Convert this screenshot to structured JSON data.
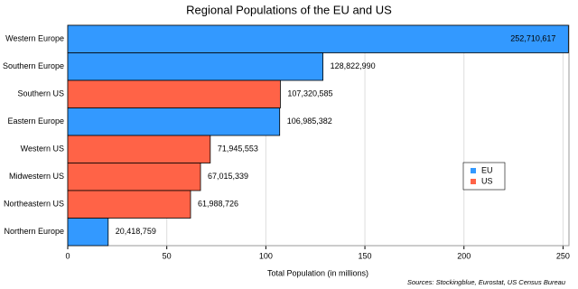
{
  "chart_data": {
    "type": "hbar",
    "title": "Regional Populations of the EU and US",
    "x_label": "Total Population (in millions)",
    "source": "Sources: Stockingblue, Eurostat, US Census Bureau",
    "categories": [
      "Western Europe",
      "Southern Europe",
      "Southern US",
      "Eastern Europe",
      "Western US",
      "Midwestern US",
      "Northeastern US",
      "Northern Europe"
    ],
    "series": [
      {
        "name": "EU",
        "color": "#3399ff",
        "values": [
          252.710617,
          128.82299,
          null,
          106.985382,
          null,
          null,
          null,
          20.418759
        ],
        "value_labels": [
          "252,710,617",
          "128,822,990",
          null,
          "106,985,382",
          null,
          null,
          null,
          "20,418,759"
        ]
      },
      {
        "name": "US",
        "color": "#ff6347",
        "values": [
          null,
          null,
          107.320585,
          null,
          71.945553,
          67.015339,
          61.988726,
          null
        ],
        "value_labels": [
          null,
          null,
          "107,320,585",
          null,
          "71,945,553",
          "67,015,339",
          "61,988,726",
          null
        ]
      }
    ],
    "xlim": [
      0,
      253
    ],
    "xticks": [
      0,
      50,
      100,
      150,
      200,
      250
    ],
    "grid": true,
    "legend": "right"
  }
}
